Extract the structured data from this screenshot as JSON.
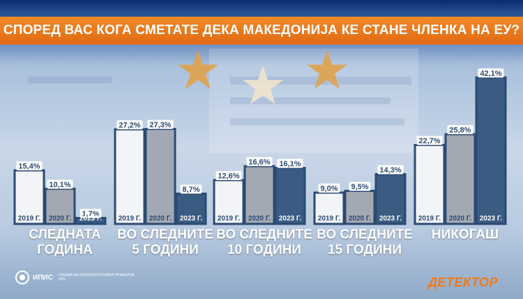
{
  "header": {
    "title": "СПОРЕД ВАС КОГА СМЕТАТЕ ДЕКА МАКЕДОНИЈА КЕ СТАНЕ ЧЛЕНКА НА ЕУ?"
  },
  "chart_data": {
    "type": "bar",
    "title": "СПОРЕД ВАС КОГА СМЕТАТЕ ДЕКА МАКЕДОНИЈА КЕ СТАНЕ ЧЛЕНКА НА ЕУ?",
    "categories": [
      [
        "СЛЕДНАТА",
        "ГОДИНА"
      ],
      [
        "ВО СЛЕДНИТЕ",
        "5 ГОДИНИ"
      ],
      [
        "ВО СЛЕДНИТЕ",
        "10 ГОДИНИ"
      ],
      [
        "ВО СЛЕДНИТЕ",
        "15 ГОДИНИ"
      ],
      [
        "НИКОГАШ"
      ]
    ],
    "series": [
      {
        "name": "2019 Г.",
        "values": [
          15.4,
          27.2,
          12.6,
          9.0,
          22.7
        ],
        "color": "#f2f4f8"
      },
      {
        "name": "2020 Г.",
        "values": [
          10.1,
          27.3,
          16.6,
          9.5,
          25.8
        ],
        "color": "#a3a9b2"
      },
      {
        "name": "2023 Г.",
        "values": [
          1.7,
          8.7,
          16.1,
          14.3,
          42.1
        ],
        "color": "#3a5b82"
      }
    ],
    "value_labels": [
      [
        "15,4%",
        "10,1%",
        "1,7%"
      ],
      [
        "27,2%",
        "27,3%",
        "8,7%"
      ],
      [
        "12,6%",
        "16,6%",
        "16,1%"
      ],
      [
        "9,0%",
        "9,5%",
        "14,3%"
      ],
      [
        "22,7%",
        "25,8%",
        "42,1%"
      ]
    ],
    "xlabel": "",
    "ylabel": "",
    "grid": false,
    "colors": {
      "outline": "#2b4a73",
      "label_bg": "#ffffff",
      "label_text": "#2b4a73"
    }
  },
  "footer": {
    "pollster": "ИПИС",
    "pollster_note": "ГРЕШКА НА РЕПРЕЗЕНТАТИВЕН ПРИМЕРОК ±3%",
    "brand": "ДЕТЕКТОР"
  },
  "decor": {
    "star_color": "#e0a24a"
  }
}
